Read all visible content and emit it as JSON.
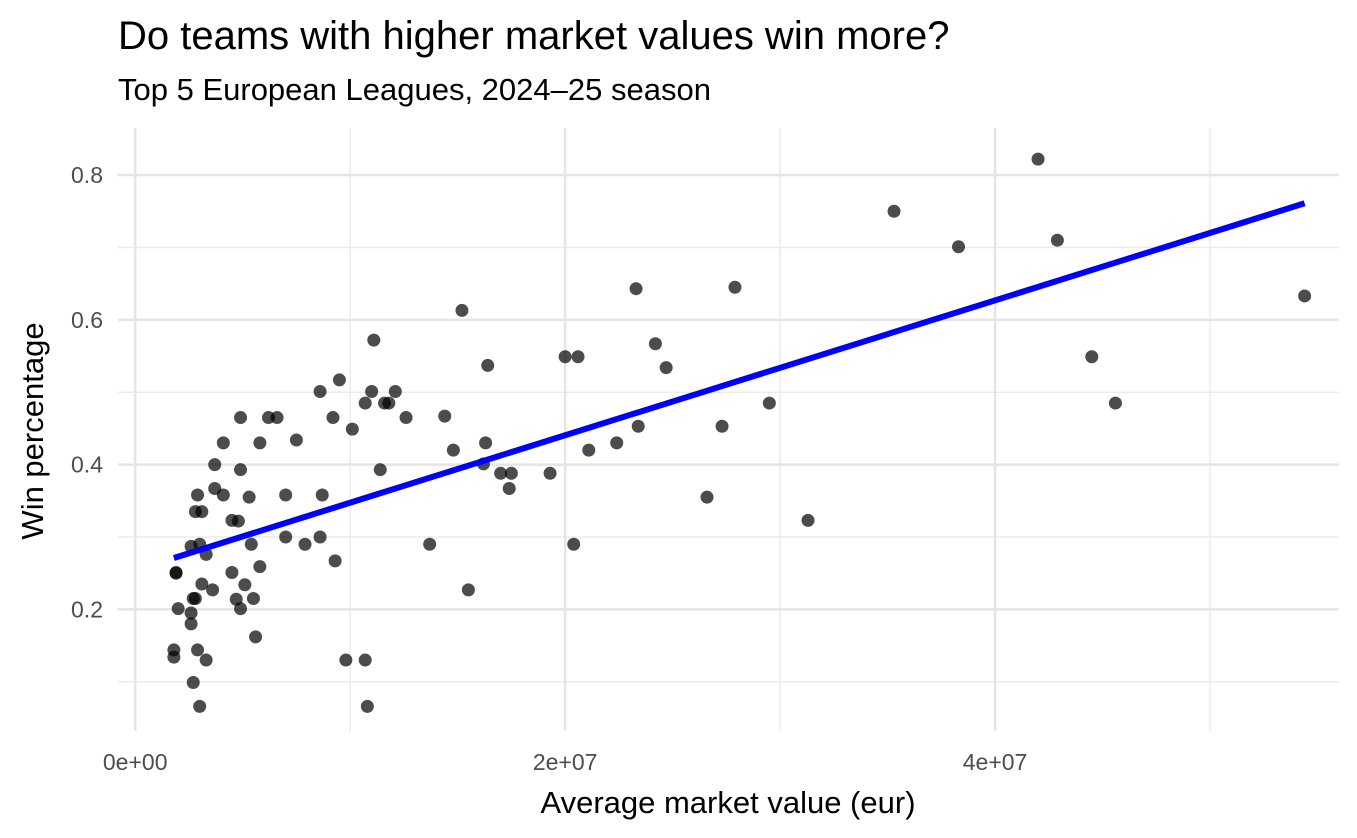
{
  "chart_data": {
    "type": "scatter",
    "title": "Do teams with higher market values win more?",
    "subtitle": "Top 5 European Leagues, 2024–25 season",
    "xlabel": "Average market value (eur)",
    "ylabel": "Win percentage",
    "xlim": [
      -800000.0,
      56000000.0
    ],
    "ylim": [
      0.032,
      0.865
    ],
    "x_ticks": [
      0,
      20000000,
      40000000
    ],
    "x_tick_labels": [
      "0e+00",
      "2e+07",
      "4e+07"
    ],
    "y_ticks": [
      0.2,
      0.4,
      0.6,
      0.8
    ],
    "y_tick_labels": [
      "0.2",
      "0.4",
      "0.6",
      "0.8"
    ],
    "grid": true,
    "point_color": "#000000",
    "point_opacity": 0.7,
    "trend_color": "#0000ff",
    "trend_line": {
      "x": [
        1800000,
        54400000
      ],
      "y": [
        0.271,
        0.761
      ]
    },
    "points": [
      {
        "x": 3300000,
        "y": 0.13
      },
      {
        "x": 2700000,
        "y": 0.099
      },
      {
        "x": 3000000,
        "y": 0.066
      },
      {
        "x": 1800000,
        "y": 0.144
      },
      {
        "x": 1800000,
        "y": 0.134
      },
      {
        "x": 2900000,
        "y": 0.144
      },
      {
        "x": 2000000,
        "y": 0.201
      },
      {
        "x": 2600000,
        "y": 0.18
      },
      {
        "x": 2600000,
        "y": 0.195
      },
      {
        "x": 2700000,
        "y": 0.215
      },
      {
        "x": 2800000,
        "y": 0.215
      },
      {
        "x": 1900000,
        "y": 0.25
      },
      {
        "x": 1900000,
        "y": 0.251
      },
      {
        "x": 2600000,
        "y": 0.287
      },
      {
        "x": 3000000,
        "y": 0.29
      },
      {
        "x": 2800000,
        "y": 0.335
      },
      {
        "x": 3100000,
        "y": 0.335
      },
      {
        "x": 2900000,
        "y": 0.358
      },
      {
        "x": 3300000,
        "y": 0.276
      },
      {
        "x": 3100000,
        "y": 0.235
      },
      {
        "x": 3600000,
        "y": 0.227
      },
      {
        "x": 3700000,
        "y": 0.367
      },
      {
        "x": 3700000,
        "y": 0.4
      },
      {
        "x": 4100000,
        "y": 0.358
      },
      {
        "x": 4100000,
        "y": 0.43
      },
      {
        "x": 4500000,
        "y": 0.323
      },
      {
        "x": 4800000,
        "y": 0.322
      },
      {
        "x": 4500000,
        "y": 0.251
      },
      {
        "x": 4700000,
        "y": 0.214
      },
      {
        "x": 4900000,
        "y": 0.201
      },
      {
        "x": 5100000,
        "y": 0.234
      },
      {
        "x": 5400000,
        "y": 0.29
      },
      {
        "x": 5500000,
        "y": 0.215
      },
      {
        "x": 5300000,
        "y": 0.355
      },
      {
        "x": 4900000,
        "y": 0.393
      },
      {
        "x": 4900000,
        "y": 0.465
      },
      {
        "x": 5600000,
        "y": 0.162
      },
      {
        "x": 5800000,
        "y": 0.259
      },
      {
        "x": 5800000,
        "y": 0.43
      },
      {
        "x": 6200000,
        "y": 0.465
      },
      {
        "x": 6600000,
        "y": 0.465
      },
      {
        "x": 7000000,
        "y": 0.358
      },
      {
        "x": 7000000,
        "y": 0.3
      },
      {
        "x": 7500000,
        "y": 0.434
      },
      {
        "x": 7900000,
        "y": 0.29
      },
      {
        "x": 8600000,
        "y": 0.3
      },
      {
        "x": 8700000,
        "y": 0.358
      },
      {
        "x": 8600000,
        "y": 0.501
      },
      {
        "x": 9200000,
        "y": 0.465
      },
      {
        "x": 9300000,
        "y": 0.267
      },
      {
        "x": 9500000,
        "y": 0.517
      },
      {
        "x": 9800000,
        "y": 0.13
      },
      {
        "x": 10100000,
        "y": 0.449
      },
      {
        "x": 10700000,
        "y": 0.13
      },
      {
        "x": 10800000,
        "y": 0.066
      },
      {
        "x": 10700000,
        "y": 0.485
      },
      {
        "x": 11000000,
        "y": 0.501
      },
      {
        "x": 11100000,
        "y": 0.572
      },
      {
        "x": 11400000,
        "y": 0.393
      },
      {
        "x": 11600000,
        "y": 0.485
      },
      {
        "x": 11800000,
        "y": 0.485
      },
      {
        "x": 12100000,
        "y": 0.501
      },
      {
        "x": 12600000,
        "y": 0.465
      },
      {
        "x": 13700000,
        "y": 0.29
      },
      {
        "x": 14400000,
        "y": 0.467
      },
      {
        "x": 14800000,
        "y": 0.42
      },
      {
        "x": 15200000,
        "y": 0.613
      },
      {
        "x": 15500000,
        "y": 0.227
      },
      {
        "x": 16200000,
        "y": 0.401
      },
      {
        "x": 16300000,
        "y": 0.43
      },
      {
        "x": 16400000,
        "y": 0.537
      },
      {
        "x": 17000000,
        "y": 0.388
      },
      {
        "x": 17400000,
        "y": 0.367
      },
      {
        "x": 17500000,
        "y": 0.388
      },
      {
        "x": 19300000,
        "y": 0.388
      },
      {
        "x": 20000000,
        "y": 0.549
      },
      {
        "x": 20400000,
        "y": 0.29
      },
      {
        "x": 20600000,
        "y": 0.549
      },
      {
        "x": 21100000,
        "y": 0.42
      },
      {
        "x": 22400000,
        "y": 0.43
      },
      {
        "x": 23300000,
        "y": 0.643
      },
      {
        "x": 23400000,
        "y": 0.453
      },
      {
        "x": 24200000,
        "y": 0.567
      },
      {
        "x": 24700000,
        "y": 0.534
      },
      {
        "x": 26600000,
        "y": 0.355
      },
      {
        "x": 27300000,
        "y": 0.453
      },
      {
        "x": 27900000,
        "y": 0.645
      },
      {
        "x": 29500000,
        "y": 0.485
      },
      {
        "x": 31300000,
        "y": 0.323
      },
      {
        "x": 35300000,
        "y": 0.75
      },
      {
        "x": 38300000,
        "y": 0.701
      },
      {
        "x": 42000000,
        "y": 0.822
      },
      {
        "x": 42900000,
        "y": 0.71
      },
      {
        "x": 44500000,
        "y": 0.549
      },
      {
        "x": 45600000,
        "y": 0.485
      },
      {
        "x": 54400000,
        "y": 0.633
      }
    ]
  }
}
